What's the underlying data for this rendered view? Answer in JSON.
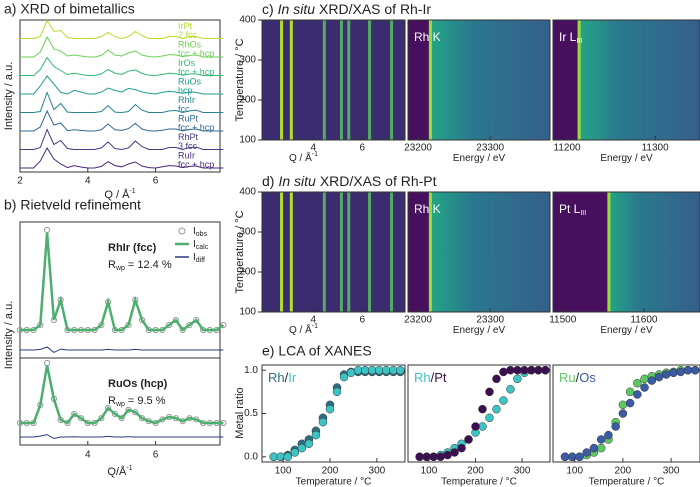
{
  "chart_data": [
    {
      "type": "line",
      "title": "a)  XRD of bimetallics",
      "ylabel": "Intensity / a.u.",
      "xlabel": "Q / Å",
      "xlabel_sup": "-1",
      "xlim": [
        2,
        7.9
      ],
      "xticks": [
        2,
        4,
        6
      ],
      "x": [
        2.0,
        2.2,
        2.4,
        2.6,
        2.8,
        3.0,
        3.2,
        3.4,
        3.6,
        3.8,
        4.0,
        4.2,
        4.4,
        4.6,
        4.8,
        5.0,
        5.2,
        5.4,
        5.6,
        5.8,
        6.0,
        6.2,
        6.4,
        6.6,
        6.8,
        7.0,
        7.2,
        7.4,
        7.6,
        7.8,
        8.0
      ],
      "series": [
        {
          "name": "IrPt",
          "phase": "2 fcc",
          "color": "#b5de2b",
          "values": [
            0,
            0,
            0,
            0.1,
            0.9,
            0.35,
            0.4,
            0.05,
            0,
            0,
            0,
            0,
            0.1,
            0.3,
            0.1,
            0,
            0.1,
            0.35,
            0.15,
            0,
            0,
            0,
            0.1,
            0.1,
            0,
            0.1,
            0.1,
            0,
            0,
            0,
            0
          ]
        },
        {
          "name": "RhOs",
          "phase": "fcc + hcp",
          "color": "#6ece58",
          "values": [
            0,
            0,
            0,
            0.25,
            1,
            0.4,
            0.3,
            0.05,
            0.1,
            0.05,
            0,
            0,
            0.08,
            0.35,
            0.1,
            0.05,
            0.2,
            0.3,
            0.1,
            0.02,
            0,
            0.05,
            0.12,
            0.1,
            0.02,
            0.08,
            0.1,
            0,
            0,
            0,
            0
          ]
        },
        {
          "name": "IrOs",
          "phase": "fcc + hcp",
          "color": "#35b779",
          "values": [
            0,
            0,
            0,
            0.3,
            0.9,
            0.45,
            0.25,
            0.05,
            0.12,
            0.05,
            0,
            0,
            0.08,
            0.3,
            0.12,
            0.05,
            0.22,
            0.28,
            0.1,
            0.02,
            0,
            0.05,
            0.12,
            0.08,
            0.02,
            0.08,
            0.08,
            0,
            0,
            0,
            0
          ]
        },
        {
          "name": "RuOs",
          "phase": "hcp",
          "color": "#1f9e89",
          "values": [
            0,
            0,
            0,
            0.4,
            0.9,
            0.5,
            0.08,
            0,
            0.18,
            0.1,
            0,
            0,
            0.1,
            0.3,
            0.18,
            0.1,
            0.28,
            0.22,
            0.1,
            0.04,
            0,
            0.08,
            0.14,
            0.1,
            0.04,
            0.1,
            0.08,
            0,
            0,
            0,
            0
          ]
        },
        {
          "name": "RhIr",
          "phase": "fcc",
          "color": "#26828e",
          "values": [
            0,
            0,
            0,
            0.05,
            1,
            0.15,
            0.45,
            0.02,
            0,
            0,
            0,
            0,
            0.05,
            0.35,
            0.02,
            0,
            0.05,
            0.4,
            0.12,
            0,
            0,
            0,
            0.08,
            0.1,
            0,
            0.08,
            0.12,
            0,
            0,
            0,
            0
          ]
        },
        {
          "name": "RuPt",
          "phase": "fcc + hcp",
          "color": "#31688e",
          "values": [
            0,
            0,
            0,
            0.2,
            1,
            0.3,
            0.4,
            0.02,
            0.06,
            0.03,
            0,
            0,
            0.06,
            0.35,
            0.06,
            0.03,
            0.12,
            0.38,
            0.1,
            0.01,
            0,
            0.04,
            0.1,
            0.1,
            0.01,
            0.08,
            0.1,
            0,
            0,
            0,
            0
          ]
        },
        {
          "name": "RhPt",
          "phase": "3 fcc",
          "color": "#443983",
          "values": [
            0,
            0,
            0,
            0.1,
            1,
            0.25,
            0.45,
            0.05,
            0,
            0,
            0,
            0,
            0.08,
            0.38,
            0.05,
            0,
            0.08,
            0.42,
            0.15,
            0,
            0,
            0,
            0.1,
            0.1,
            0,
            0.1,
            0.12,
            0,
            0,
            0,
            0
          ]
        },
        {
          "name": "RuIr",
          "phase": "fcc + hcp",
          "color": "#482878",
          "values": [
            0,
            0,
            0,
            0.35,
            1,
            0.45,
            0.2,
            0.02,
            0.12,
            0.05,
            0,
            0,
            0.08,
            0.32,
            0.12,
            0.06,
            0.2,
            0.3,
            0.1,
            0.02,
            0,
            0.06,
            0.12,
            0.1,
            0.02,
            0.08,
            0.1,
            0,
            0,
            0,
            0
          ]
        }
      ]
    },
    {
      "type": "rietveld",
      "title": "b) Rietveld refinement",
      "ylabel": "Intensity / a.u.",
      "xlabel": "Q/Å",
      "xlabel_sup": "-1",
      "xlim": [
        2,
        7.9
      ],
      "xticks": [
        4,
        6
      ],
      "legend": [
        {
          "name": "I",
          "sub": "obs",
          "color": "#999999"
        },
        {
          "name": "I",
          "sub": "calc",
          "color": "#4caf6e"
        },
        {
          "name": "I",
          "sub": "diff",
          "color": "#2b3a80"
        }
      ],
      "x": [
        2.0,
        2.2,
        2.4,
        2.6,
        2.8,
        3.0,
        3.2,
        3.4,
        3.6,
        3.8,
        4.0,
        4.2,
        4.4,
        4.6,
        4.8,
        5.0,
        5.2,
        5.4,
        5.6,
        5.8,
        6.0,
        6.2,
        6.4,
        6.6,
        6.8,
        7.0,
        7.2,
        7.4,
        7.6,
        7.8,
        8.0
      ],
      "plots": [
        {
          "label": "RhIr (fcc)",
          "r": "R",
          "r_sub": "wp",
          "r_text": "= 12.4 %",
          "obs": [
            0,
            0,
            0,
            0.05,
            1,
            0.1,
            0.3,
            0,
            0,
            0,
            0,
            0,
            0.05,
            0.28,
            0,
            0,
            0.05,
            0.3,
            0.1,
            0,
            0,
            0,
            0.05,
            0.1,
            0,
            0.05,
            0.1,
            0,
            0,
            0,
            0.05
          ],
          "calc": [
            0,
            0,
            0,
            0.05,
            0.97,
            0.1,
            0.3,
            0,
            0,
            0,
            0,
            0,
            0.05,
            0.28,
            0,
            0,
            0.05,
            0.3,
            0.1,
            0,
            0,
            0,
            0.05,
            0.1,
            0,
            0.05,
            0.1,
            0,
            0,
            0,
            0.05
          ],
          "diff": [
            0,
            0,
            0,
            0.02,
            0.1,
            -0.08,
            0.03,
            0,
            0,
            0,
            0,
            0,
            0,
            0.02,
            0,
            0,
            0,
            0.02,
            0,
            0,
            0,
            0,
            0,
            0,
            0,
            0,
            0,
            0,
            0,
            0,
            0
          ]
        },
        {
          "label": "RuOs (hcp)",
          "r": "R",
          "r_sub": "wp",
          "r_text": "= 9.5 %",
          "obs": [
            0,
            0,
            0,
            0.3,
            1,
            0.4,
            0.05,
            0,
            0.15,
            0.08,
            0,
            0,
            0.08,
            0.25,
            0.15,
            0.08,
            0.22,
            0.18,
            0.08,
            0.03,
            0,
            0.06,
            0.1,
            0.08,
            0.03,
            0.08,
            0.06,
            0,
            0,
            0,
            0
          ],
          "calc": [
            0,
            0,
            0,
            0.3,
            0.96,
            0.4,
            0.05,
            0,
            0.15,
            0.08,
            0,
            0,
            0.08,
            0.25,
            0.15,
            0.08,
            0.22,
            0.18,
            0.08,
            0.03,
            0,
            0.06,
            0.1,
            0.08,
            0.03,
            0.08,
            0.06,
            0,
            0,
            0,
            0
          ],
          "diff": [
            0,
            0,
            0,
            0.03,
            0.08,
            -0.05,
            0,
            0,
            0.01,
            0,
            0,
            0,
            0,
            0.02,
            0,
            0,
            0.01,
            0,
            0,
            0,
            0,
            0,
            0,
            0,
            0,
            0,
            0,
            0,
            0,
            0,
            0
          ]
        }
      ]
    },
    {
      "type": "heatmap",
      "title": [
        "c)",
        "In situ",
        "XRD/XAS of Rh-Ir"
      ],
      "ylabel": "Temperature / °C",
      "ylim": [
        100,
        400
      ],
      "yticks": [
        100,
        200,
        300,
        400
      ],
      "maps": [
        {
          "xlabel": "Q / Å",
          "xlabel_sup": "-1",
          "xlim": [
            1.9,
            7.75
          ],
          "xticks": [
            4,
            6
          ],
          "peaks": [
            2.7,
            3.1,
            4.45,
            5.15,
            5.45,
            6.3,
            7.2
          ]
        },
        {
          "label": "Rh K",
          "xlabel": "Energy / eV",
          "xlim": [
            23186,
            23383
          ],
          "xticks": [
            23200,
            23300
          ],
          "edge": 23215
        },
        {
          "label": "Ir L",
          "label_sub": "III",
          "xlabel": "Energy / eV",
          "xlim": [
            11184,
            11351
          ],
          "xticks": [
            11200,
            11300
          ],
          "edge": 11212
        }
      ]
    },
    {
      "type": "heatmap",
      "title": [
        "d)",
        "In situ",
        "XRD/XAS of Rh-Pt"
      ],
      "ylabel": "Temperature / °C",
      "ylim": [
        100,
        400
      ],
      "yticks": [
        100,
        200,
        300,
        400
      ],
      "maps": [
        {
          "xlabel": "Q / Å",
          "xlabel_sup": "-1",
          "xlim": [
            1.9,
            7.75
          ],
          "xticks": [
            4,
            6
          ],
          "peaks": [
            2.7,
            3.1,
            4.45,
            5.15,
            5.45,
            6.3,
            7.2
          ]
        },
        {
          "label": "Rh K",
          "xlabel": "Energy / eV",
          "xlim": [
            23186,
            23383
          ],
          "xticks": [
            23200,
            23300
          ],
          "edge": 23215
        },
        {
          "label": "Pt L",
          "label_sub": "III",
          "xlabel": "Energy / eV",
          "xlim": [
            11488,
            11669
          ],
          "xticks": [
            11500,
            11600
          ],
          "edge": 11555
        }
      ]
    },
    {
      "type": "scatter",
      "title": "e) LCA of XANES",
      "ylabel": "Metal ratio",
      "xlabel": "Temperature / °C",
      "ylim": [
        -0.06,
        1.06
      ],
      "yticks": [
        {
          "value": 0,
          "label": "0.0"
        },
        {
          "value": 0.5,
          "label": "0.5"
        },
        {
          "value": 1,
          "label": "1.0"
        }
      ],
      "xlim": [
        55,
        360
      ],
      "xticks": [
        100,
        200,
        300
      ],
      "separator": "/",
      "x": [
        80,
        95,
        110,
        125,
        140,
        155,
        170,
        185,
        200,
        215,
        230,
        245,
        260,
        275,
        290,
        305,
        320,
        335,
        350
      ],
      "plots": [
        {
          "series": [
            {
              "name": "Rh",
              "color": "#2e6e80",
              "values": [
                0,
                0,
                0.02,
                0.08,
                0.15,
                0.2,
                0.3,
                0.45,
                0.6,
                0.8,
                0.95,
                0.98,
                0.98,
                0.98,
                0.98,
                0.98,
                0.98,
                0.98,
                0.98
              ]
            },
            {
              "name": "Ir",
              "color": "#3cc4c4",
              "values": [
                0,
                0,
                0,
                0.05,
                0.1,
                0.15,
                0.25,
                0.4,
                0.55,
                0.75,
                0.92,
                0.97,
                1,
                1,
                1,
                1,
                1,
                1,
                1
              ]
            }
          ]
        },
        {
          "series": [
            {
              "name": "Rh",
              "color": "#3cc4c4",
              "values": [
                0,
                0,
                0,
                0.02,
                0.05,
                0.1,
                0.15,
                0.2,
                0.28,
                0.35,
                0.45,
                0.55,
                0.65,
                0.78,
                0.9,
                0.97,
                1,
                1,
                1
              ]
            },
            {
              "name": "Pt",
              "color": "#3b0f50",
              "values": [
                0,
                0,
                0,
                0,
                0.02,
                0.05,
                0.1,
                0.2,
                0.35,
                0.55,
                0.75,
                0.9,
                0.98,
                1,
                1,
                1,
                1,
                1,
                1
              ]
            }
          ]
        },
        {
          "series": [
            {
              "name": "Ru",
              "color": "#5ec962",
              "values": [
                0,
                0,
                0,
                0.02,
                0.05,
                0.1,
                0.2,
                0.4,
                0.6,
                0.75,
                0.85,
                0.9,
                0.93,
                0.95,
                0.97,
                0.98,
                1,
                1,
                1
              ]
            },
            {
              "name": "Os",
              "color": "#3b5ba5",
              "values": [
                0,
                0,
                0,
                0.05,
                0.1,
                0.2,
                0.25,
                0.35,
                0.5,
                0.62,
                0.72,
                0.8,
                0.88,
                0.92,
                0.95,
                0.97,
                0.98,
                1,
                1
              ]
            }
          ]
        }
      ]
    }
  ]
}
